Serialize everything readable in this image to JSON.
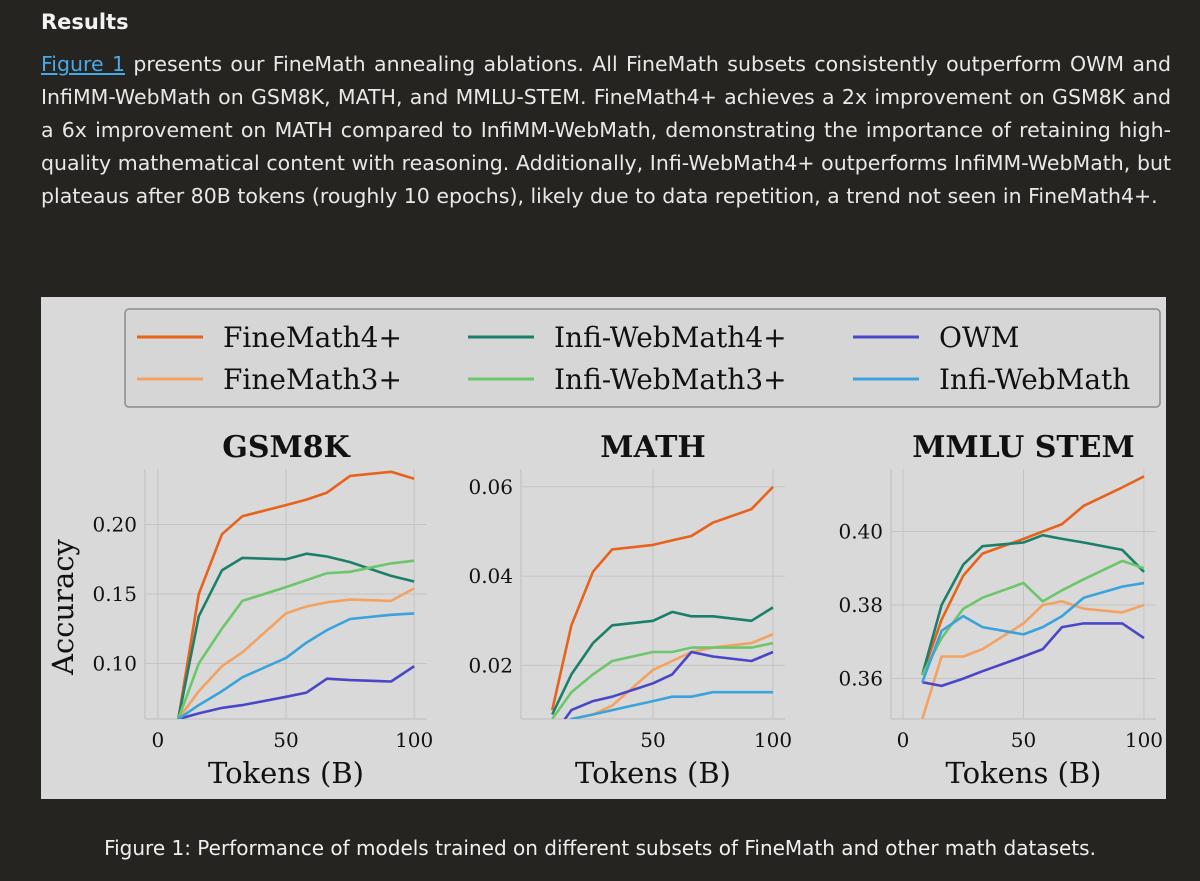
{
  "section_heading": "Results",
  "paragraph": {
    "link_text": "Figure 1",
    "text": " presents our FineMath annealing ablations. All FineMath subsets consistently outperform OWM and InfiMM-WebMath on GSM8K, MATH, and MMLU-STEM. FineMath4+ achieves a 2x improvement on GSM8K and a 6x improvement on MATH compared to InfiMM-WebMath, demonstrating the importance of retaining high-quality mathematical content with reasoning. Additionally, Infi-WebMath4+ outperforms InfiMM-WebMath, but plateaus after 80B tokens (roughly 10 epochs), likely due to data repetition, a trend not seen in FineMath4+."
  },
  "caption": "Figure 1: Performance of models trained on different subsets of FineMath and other math datasets.",
  "colors": {
    "FineMath4+": "#e8621c",
    "FineMath3+": "#f4a261",
    "Infi-WebMath4+": "#1b7f6a",
    "Infi-WebMath3+": "#6cc66c",
    "OWM": "#4a46c8",
    "Infi-WebMath": "#3aa3dc"
  },
  "legend": [
    "FineMath4+",
    "Infi-WebMath4+",
    "OWM",
    "FineMath3+",
    "Infi-WebMath3+",
    "Infi-WebMath"
  ],
  "chart_data": [
    {
      "type": "line",
      "title": "GSM8K",
      "xlabel": "Tokens (B)",
      "ylabel": "Accuracy",
      "xlim": [
        -5,
        105
      ],
      "ylim": [
        0.06,
        0.24
      ],
      "xticks": [
        0,
        50,
        100
      ],
      "yticks": [
        0.1,
        0.15,
        0.2
      ],
      "ytick_labels": [
        "0.10",
        "0.15",
        "0.20"
      ],
      "x": [
        8,
        16,
        25,
        33,
        50,
        58,
        66,
        75,
        91,
        100
      ],
      "series": [
        {
          "name": "FineMath4+",
          "values": [
            0.06,
            0.15,
            0.193,
            0.206,
            0.214,
            0.218,
            0.223,
            0.235,
            0.238,
            0.233
          ]
        },
        {
          "name": "FineMath3+",
          "values": [
            0.06,
            0.08,
            0.098,
            0.108,
            0.136,
            0.141,
            0.144,
            0.146,
            0.145,
            0.154
          ]
        },
        {
          "name": "Infi-WebMath4+",
          "values": [
            0.06,
            0.134,
            0.167,
            0.176,
            0.175,
            0.179,
            0.177,
            0.173,
            0.163,
            0.159
          ]
        },
        {
          "name": "Infi-WebMath3+",
          "values": [
            0.06,
            0.1,
            0.125,
            0.145,
            0.155,
            0.16,
            0.165,
            0.166,
            0.172,
            0.174
          ]
        },
        {
          "name": "OWM",
          "values": [
            0.06,
            0.064,
            0.068,
            0.07,
            0.076,
            0.079,
            0.089,
            0.088,
            0.087,
            0.098
          ]
        },
        {
          "name": "Infi-WebMath",
          "values": [
            0.06,
            0.07,
            0.08,
            0.09,
            0.104,
            0.115,
            0.124,
            0.132,
            0.135,
            0.136
          ]
        }
      ]
    },
    {
      "type": "line",
      "title": "MATH",
      "xlabel": "Tokens (B)",
      "ylabel": "",
      "xlim": [
        -5,
        105
      ],
      "ylim": [
        0.008,
        0.064
      ],
      "xticks": [
        50,
        100
      ],
      "yticks": [
        0.02,
        0.04,
        0.06
      ],
      "ytick_labels": [
        "0.02",
        "0.04",
        "0.06"
      ],
      "x": [
        8,
        16,
        25,
        33,
        50,
        58,
        66,
        75,
        91,
        100
      ],
      "series": [
        {
          "name": "FineMath4+",
          "values": [
            0.01,
            0.029,
            0.041,
            0.046,
            0.047,
            0.048,
            0.049,
            0.052,
            0.055,
            0.06
          ]
        },
        {
          "name": "FineMath3+",
          "values": [
            0.004,
            0.008,
            0.009,
            0.011,
            0.019,
            0.021,
            0.023,
            0.024,
            0.025,
            0.027
          ]
        },
        {
          "name": "Infi-WebMath4+",
          "values": [
            0.009,
            0.018,
            0.025,
            0.029,
            0.03,
            0.032,
            0.031,
            0.031,
            0.03,
            0.033
          ]
        },
        {
          "name": "Infi-WebMath3+",
          "values": [
            0.008,
            0.014,
            0.018,
            0.021,
            0.023,
            0.023,
            0.024,
            0.024,
            0.024,
            0.025
          ]
        },
        {
          "name": "OWM",
          "values": [
            0.004,
            0.01,
            0.012,
            0.013,
            0.016,
            0.018,
            0.023,
            0.022,
            0.021,
            0.023
          ]
        },
        {
          "name": "Infi-WebMath",
          "values": [
            0.004,
            0.008,
            0.009,
            0.01,
            0.012,
            0.013,
            0.013,
            0.014,
            0.014,
            0.014
          ]
        }
      ]
    },
    {
      "type": "line",
      "title": "MMLU STEM",
      "xlabel": "Tokens (B)",
      "ylabel": "",
      "xlim": [
        -5,
        105
      ],
      "ylim": [
        0.349,
        0.417
      ],
      "xticks": [
        0,
        50,
        100
      ],
      "yticks": [
        0.36,
        0.38,
        0.4
      ],
      "ytick_labels": [
        "0.36",
        "0.38",
        "0.40"
      ],
      "x": [
        8,
        16,
        25,
        33,
        50,
        58,
        66,
        75,
        91,
        100
      ],
      "series": [
        {
          "name": "FineMath4+",
          "values": [
            0.361,
            0.376,
            0.388,
            0.394,
            0.398,
            0.4,
            0.402,
            0.407,
            0.412,
            0.415
          ]
        },
        {
          "name": "FineMath3+",
          "values": [
            0.349,
            0.366,
            0.366,
            0.368,
            0.375,
            0.38,
            0.381,
            0.379,
            0.378,
            0.38
          ]
        },
        {
          "name": "Infi-WebMath4+",
          "values": [
            0.361,
            0.38,
            0.391,
            0.396,
            0.397,
            0.399,
            0.398,
            0.397,
            0.395,
            0.389
          ]
        },
        {
          "name": "Infi-WebMath3+",
          "values": [
            0.361,
            0.371,
            0.379,
            0.382,
            0.386,
            0.381,
            0.384,
            0.387,
            0.392,
            0.39
          ]
        },
        {
          "name": "OWM",
          "values": [
            0.359,
            0.358,
            0.36,
            0.362,
            0.366,
            0.368,
            0.374,
            0.375,
            0.375,
            0.371
          ]
        },
        {
          "name": "Infi-WebMath",
          "values": [
            0.359,
            0.373,
            0.377,
            0.374,
            0.372,
            0.374,
            0.377,
            0.382,
            0.385,
            0.386
          ]
        }
      ]
    }
  ]
}
